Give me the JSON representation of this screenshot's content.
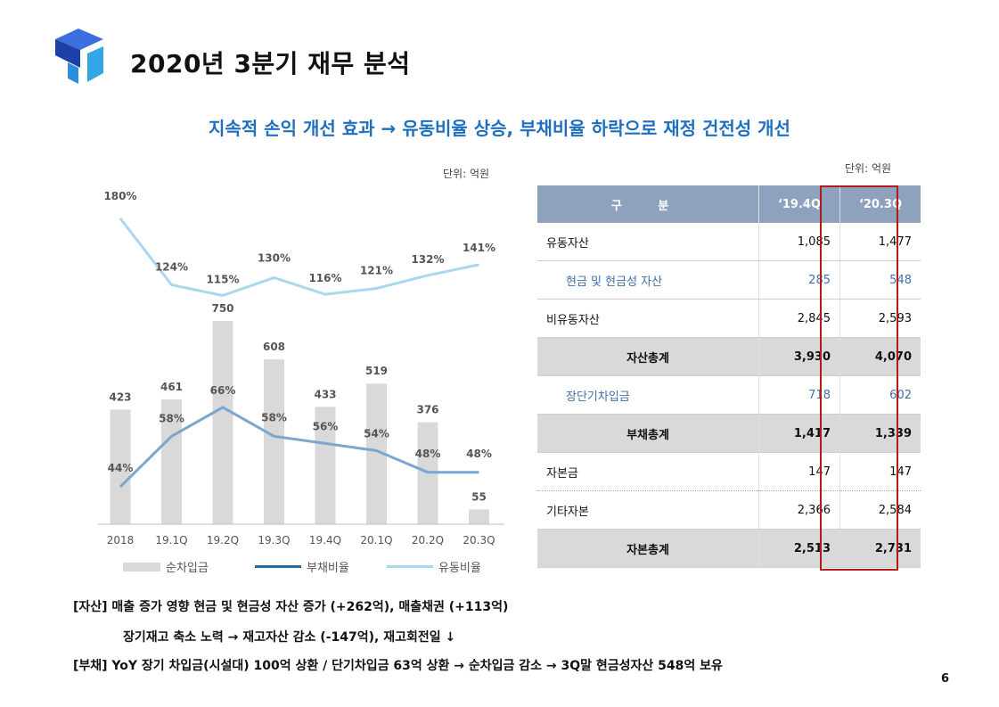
{
  "header": {
    "title": "2020년 3분기 재무 분석",
    "subtitle": "지속적 손익 개선 효과 → 유동비율 상승, 부채비율 하락으로 재정 건전성 개선"
  },
  "colors": {
    "bar": "#d9d9d9",
    "debt_line": "#7aa6cf",
    "current_line": "#a9d7ef",
    "accent": "#1f6fbf",
    "highlight": "#b31b1b"
  },
  "chart_unit": "단위: 억원",
  "table_unit": "단위: 억원",
  "chart_data": {
    "type": "bar",
    "categories": [
      "2018",
      "19.1Q",
      "19.2Q",
      "19.3Q",
      "19.4Q",
      "20.1Q",
      "20.2Q",
      "20.3Q"
    ],
    "series": [
      {
        "name": "순차입금",
        "type": "bar",
        "values": [
          423,
          461,
          750,
          608,
          433,
          519,
          376,
          55
        ]
      },
      {
        "name": "부채비율",
        "type": "line",
        "values": [
          44,
          58,
          66,
          58,
          56,
          54,
          48,
          48
        ]
      },
      {
        "name": "유동비율",
        "type": "line",
        "values": [
          180,
          124,
          115,
          130,
          116,
          121,
          132,
          141
        ]
      }
    ],
    "bar_labels": [
      "423",
      "461",
      "750",
      "608",
      "433",
      "519",
      "376",
      "55"
    ],
    "debt_labels": [
      "44%",
      "58%",
      "66%",
      "58%",
      "56%",
      "54%",
      "48%",
      "48%"
    ],
    "current_labels": [
      "180%",
      "124%",
      "115%",
      "130%",
      "116%",
      "121%",
      "132%",
      "141%"
    ],
    "title": "",
    "xlabel": "",
    "ylabel": "",
    "legend": [
      "순차입금",
      "부채비율",
      "유동비율"
    ],
    "legend_position": "bottom"
  },
  "table": {
    "headers": [
      "구 분",
      "‘19.4Q",
      "‘20.3Q"
    ],
    "rows": [
      {
        "label": "유동자산",
        "v1": "1,085",
        "v2": "1,477",
        "style": "normal"
      },
      {
        "label": "현금 및 현금성 자산",
        "v1": "285",
        "v2": "548",
        "style": "sub"
      },
      {
        "label": "비유동자산",
        "v1": "2,845",
        "v2": "2,593",
        "style": "normal"
      },
      {
        "label": "자산총계",
        "v1": "3,930",
        "v2": "4,070",
        "style": "total"
      },
      {
        "label": "장단기차입금",
        "v1": "718",
        "v2": "602",
        "style": "sub"
      },
      {
        "label": "부채총계",
        "v1": "1,417",
        "v2": "1,339",
        "style": "total"
      },
      {
        "label": "자본금",
        "v1": "147",
        "v2": "147",
        "style": "dot"
      },
      {
        "label": "기타자본",
        "v1": "2,366",
        "v2": "2,584",
        "style": "normal"
      },
      {
        "label": "자본총계",
        "v1": "2,513",
        "v2": "2,731",
        "style": "total"
      }
    ]
  },
  "notes": {
    "line1": "[자산] 매출 증가 영향 현금 및 현금성 자산 증가 (+262억), 매출채권 (+113억)",
    "line2": "장기재고 축소 노력 → 재고자산 감소 (-147억), 재고회전일 ↓",
    "line3": "[부채] YoY 장기 차입금(시설대) 100억 상환 / 단기차입금 63억 상환 → 순차입금 감소 → 3Q말 현금성자산 548억 보유"
  },
  "page_number": "6"
}
